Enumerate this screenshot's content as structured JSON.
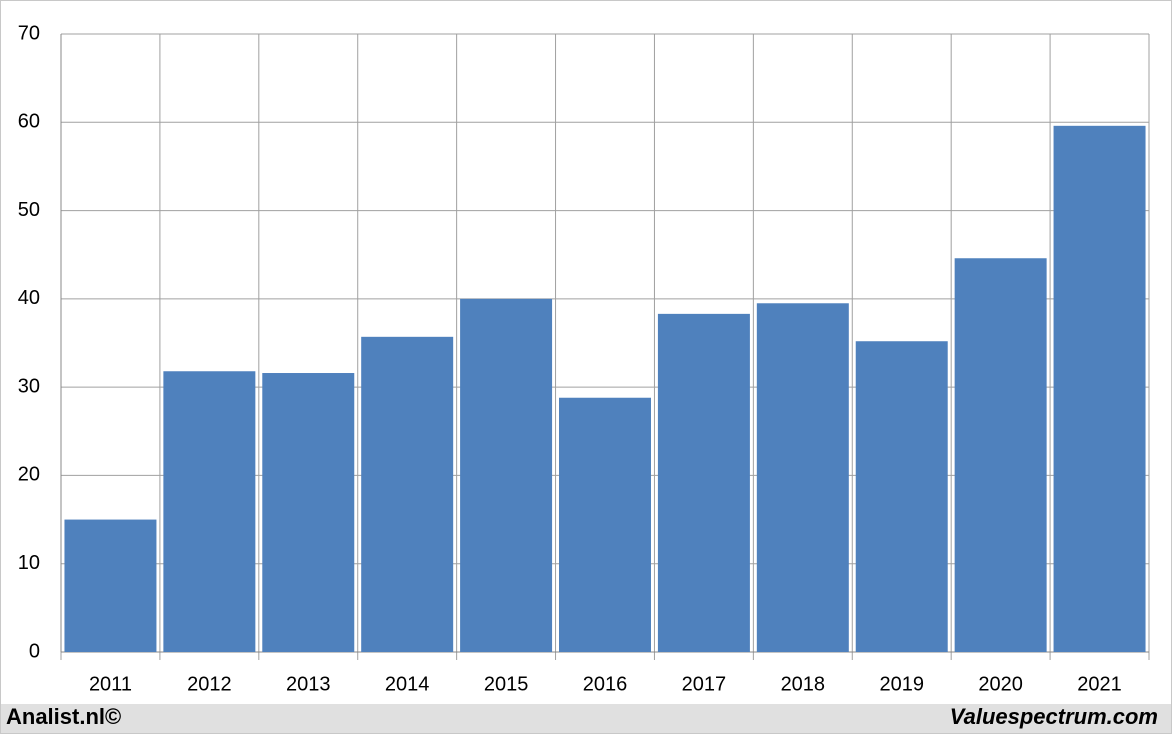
{
  "chart_data": {
    "type": "bar",
    "categories": [
      "2011",
      "2012",
      "2013",
      "2014",
      "2015",
      "2016",
      "2017",
      "2018",
      "2019",
      "2020",
      "2021"
    ],
    "values": [
      15.0,
      31.8,
      31.6,
      35.7,
      40.0,
      28.8,
      38.3,
      39.5,
      35.2,
      44.6,
      59.6
    ],
    "color": "#4f81bd",
    "ylim": [
      0,
      70
    ],
    "yticks": [
      0,
      10,
      20,
      30,
      40,
      50,
      60,
      70
    ],
    "grid": true,
    "footer_left": "Analist.nl©",
    "footer_right": "Valuespectrum.com"
  }
}
